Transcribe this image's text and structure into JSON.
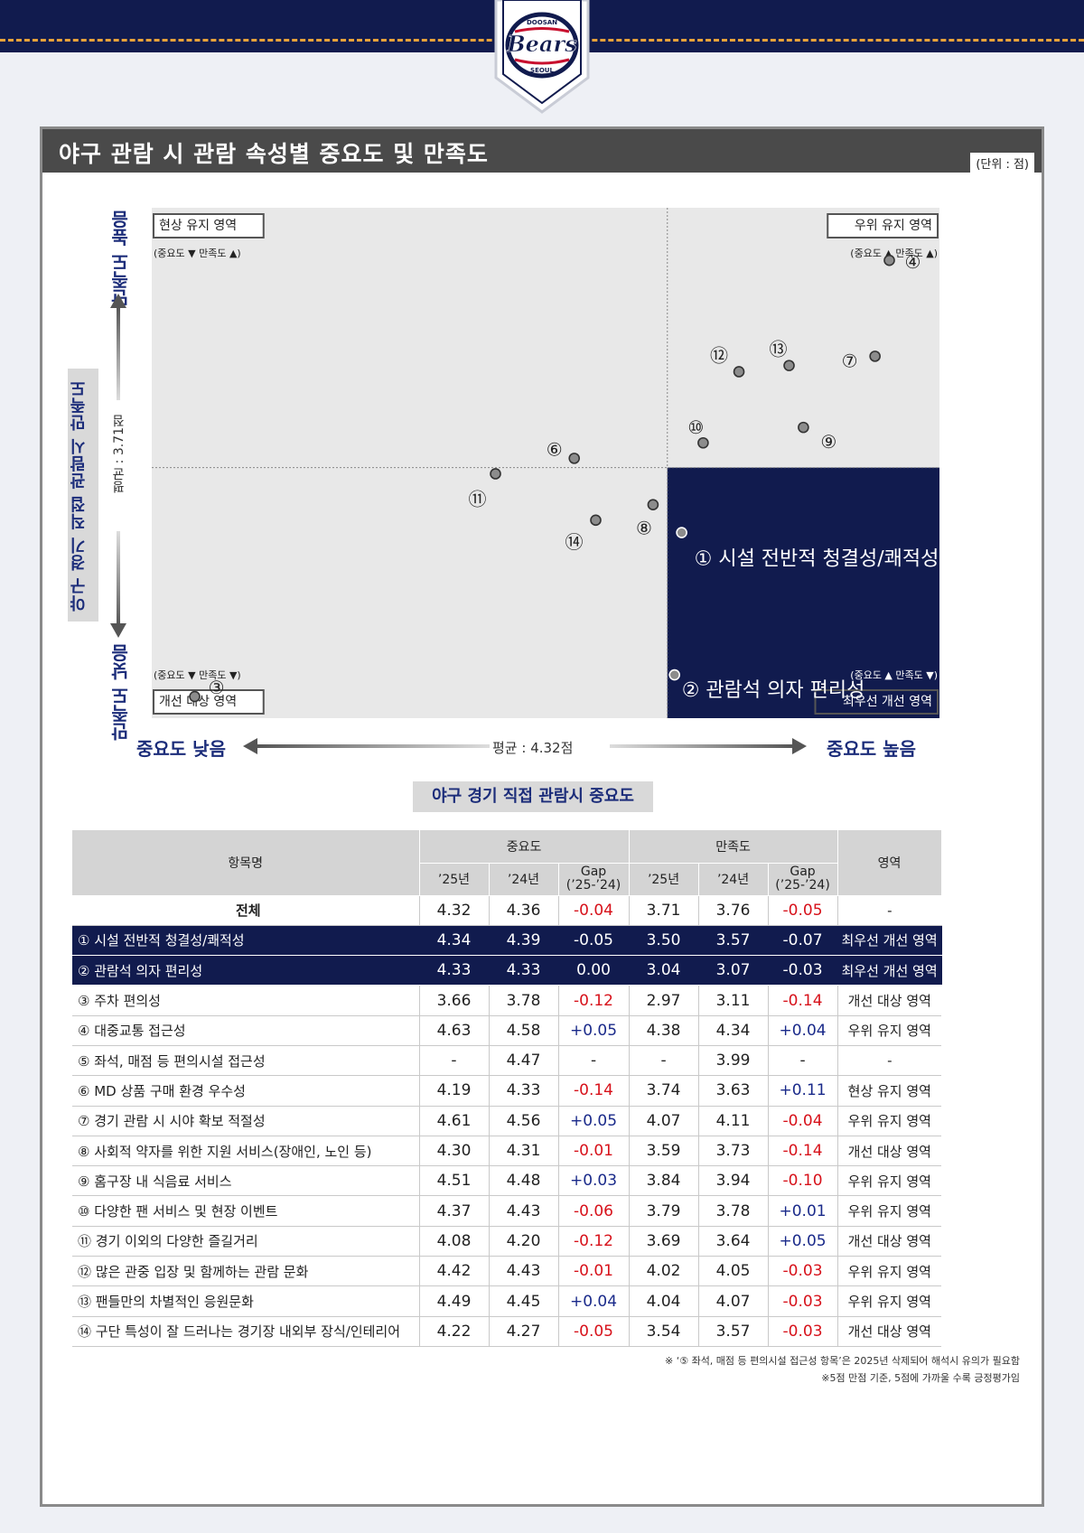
{
  "title": "야구 관람 시 관람 속성별 중요도 및 만족도",
  "unit": "(단위 : 점)",
  "chart_data": {
    "type": "scatter",
    "title": "야구 관람 시 관람 속성별 중요도 및 만족도",
    "xlabel": "야구 경기 직접 관람시 중요도",
    "ylabel": "야구 경기 직접 관람시 만족도",
    "x_low": "중요도 낮음",
    "x_high": "중요도 높음",
    "y_low": "만족도 낮음",
    "y_high": "만족도 높음",
    "x_avg": 4.32,
    "y_avg": 3.71,
    "x_avg_label": "평균 :  4.32점",
    "y_avg_label": "평균 : 3.71점",
    "xlim": [
      3.6,
      4.7
    ],
    "ylim": [
      2.9,
      4.55
    ],
    "quadrants": [
      {
        "name": "현상 유지 영역",
        "sub": "(중요도 ▼ 만족도 ▲)",
        "pos": "top-left"
      },
      {
        "name": "우위 유지 영역",
        "sub": "(중요도 ▲ 만족도 ▲)",
        "pos": "top-right"
      },
      {
        "name": "개선 대상 영역",
        "sub": "(중요도 ▼ 만족도 ▼)",
        "pos": "bottom-left"
      },
      {
        "name": "최우선 개선 영역",
        "sub": "(중요도 ▲ 만족도 ▼)",
        "pos": "bottom-right"
      }
    ],
    "points": [
      {
        "id": "①",
        "label": "① 시설 전반적 청결성/쾌적성",
        "x": 4.34,
        "y": 3.5,
        "highlight": true
      },
      {
        "id": "②",
        "label": "② 관람석 의자 편리성",
        "x": 4.33,
        "y": 3.04,
        "highlight": true
      },
      {
        "id": "③",
        "x": 3.66,
        "y": 2.97
      },
      {
        "id": "④",
        "x": 4.63,
        "y": 4.38
      },
      {
        "id": "⑥",
        "x": 4.19,
        "y": 3.74
      },
      {
        "id": "⑦",
        "x": 4.61,
        "y": 4.07
      },
      {
        "id": "⑧",
        "x": 4.3,
        "y": 3.59
      },
      {
        "id": "⑨",
        "x": 4.51,
        "y": 3.84
      },
      {
        "id": "⑩",
        "x": 4.37,
        "y": 3.79
      },
      {
        "id": "⑪",
        "x": 4.08,
        "y": 3.69
      },
      {
        "id": "⑫",
        "x": 4.42,
        "y": 4.02
      },
      {
        "id": "⑬",
        "x": 4.49,
        "y": 4.04
      },
      {
        "id": "⑭",
        "x": 4.22,
        "y": 3.54
      }
    ]
  },
  "table": {
    "headers": {
      "name": "항목명",
      "importance": "중요도",
      "satisfaction": "만족도",
      "y25": "’25년",
      "y24": "’24년",
      "gap": "Gap",
      "gap_sub": "(’25-’24)",
      "zone": "영역"
    },
    "rows": [
      {
        "name": "전체",
        "i25": "4.32",
        "i24": "4.36",
        "igap": "-0.04",
        "s25": "3.71",
        "s24": "3.76",
        "sgap": "-0.05",
        "zone": "-",
        "type": "total"
      },
      {
        "name": "① 시설 전반적 청결성/쾌적성",
        "i25": "4.34",
        "i24": "4.39",
        "igap": "-0.05",
        "s25": "3.50",
        "s24": "3.57",
        "sgap": "-0.07",
        "zone": "최우선 개선 영역",
        "type": "hl"
      },
      {
        "name": "② 관람석 의자 편리성",
        "i25": "4.33",
        "i24": "4.33",
        "igap": "0.00",
        "s25": "3.04",
        "s24": "3.07",
        "sgap": "-0.03",
        "zone": "최우선 개선 영역",
        "type": "hl"
      },
      {
        "name": "③ 주차 편의성",
        "i25": "3.66",
        "i24": "3.78",
        "igap": "-0.12",
        "s25": "2.97",
        "s24": "3.11",
        "sgap": "-0.14",
        "zone": "개선 대상 영역"
      },
      {
        "name": "④ 대중교통 접근성",
        "i25": "4.63",
        "i24": "4.58",
        "igap": "+0.05",
        "s25": "4.38",
        "s24": "4.34",
        "sgap": "+0.04",
        "zone": "우위 유지 영역"
      },
      {
        "name": "⑤ 좌석, 매점 등 편의시설 접근성",
        "i25": "-",
        "i24": "4.47",
        "igap": "-",
        "s25": "-",
        "s24": "3.99",
        "sgap": "-",
        "zone": "-"
      },
      {
        "name": "⑥ MD 상품 구매 환경 우수성",
        "i25": "4.19",
        "i24": "4.33",
        "igap": "-0.14",
        "s25": "3.74",
        "s24": "3.63",
        "sgap": "+0.11",
        "zone": "현상 유지 영역"
      },
      {
        "name": "⑦ 경기 관람 시 시야 확보 적절성",
        "i25": "4.61",
        "i24": "4.56",
        "igap": "+0.05",
        "s25": "4.07",
        "s24": "4.11",
        "sgap": "-0.04",
        "zone": "우위 유지 영역"
      },
      {
        "name": "⑧ 사회적 약자를 위한 지원 서비스(장애인, 노인 등)",
        "i25": "4.30",
        "i24": "4.31",
        "igap": "-0.01",
        "s25": "3.59",
        "s24": "3.73",
        "sgap": "-0.14",
        "zone": "개선 대상 영역"
      },
      {
        "name": "⑨ 홈구장 내 식음료 서비스",
        "i25": "4.51",
        "i24": "4.48",
        "igap": "+0.03",
        "s25": "3.84",
        "s24": "3.94",
        "sgap": "-0.10",
        "zone": "우위 유지 영역"
      },
      {
        "name": "⑩ 다양한 팬 서비스 및 현장 이벤트",
        "i25": "4.37",
        "i24": "4.43",
        "igap": "-0.06",
        "s25": "3.79",
        "s24": "3.78",
        "sgap": "+0.01",
        "zone": "우위 유지 영역"
      },
      {
        "name": "⑪ 경기 이외의 다양한 즐길거리",
        "i25": "4.08",
        "i24": "4.20",
        "igap": "-0.12",
        "s25": "3.69",
        "s24": "3.64",
        "sgap": "+0.05",
        "zone": "개선 대상 영역"
      },
      {
        "name": "⑫ 많은 관중 입장 및 함께하는 관람 문화",
        "i25": "4.42",
        "i24": "4.43",
        "igap": "-0.01",
        "s25": "4.02",
        "s24": "4.05",
        "sgap": "-0.03",
        "zone": "우위 유지 영역"
      },
      {
        "name": "⑬ 팬들만의 차별적인 응원문화",
        "i25": "4.49",
        "i24": "4.45",
        "igap": "+0.04",
        "s25": "4.04",
        "s24": "4.07",
        "sgap": "-0.03",
        "zone": "우위 유지 영역"
      },
      {
        "name": "⑭ 구단 특성이 잘 드러나는 경기장 내외부 장식/인테리어",
        "i25": "4.22",
        "i24": "4.27",
        "igap": "-0.05",
        "s25": "3.54",
        "s24": "3.57",
        "sgap": "-0.03",
        "zone": "개선 대상 영역"
      }
    ]
  },
  "notes": [
    "※ ‘⑤ 좌석, 매점 등 편의시설 접근성 항목’은 2025년 삭제되어 해석시 유의가 필요함",
    "※5점 만점 기준, 5점에 가까울 수록 긍정평가임"
  ],
  "logo": {
    "top": "DOOSAN",
    "name": "Bears",
    "bottom": "SEOUL"
  },
  "colors": {
    "navy": "#111b4e",
    "accent": "#1c2d7a",
    "negative": "#d7111a",
    "positive": "#1a2a8a",
    "stitch": "#e8a23a"
  }
}
